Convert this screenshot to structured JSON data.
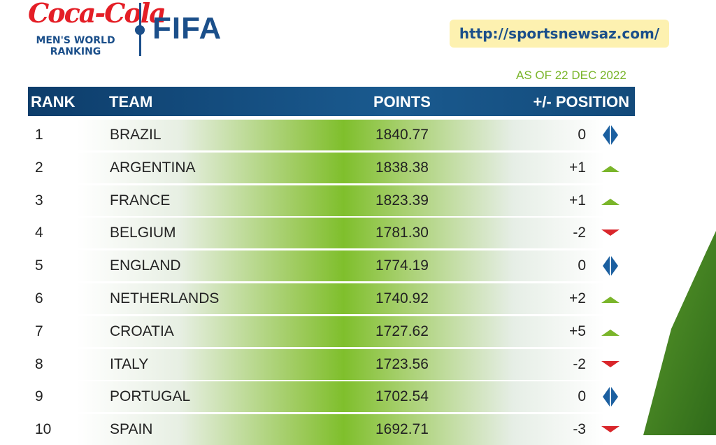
{
  "logo": {
    "sponsor": "Coca-Cola",
    "subtitle_line1": "MEN'S WORLD",
    "subtitle_line2": "RANKING",
    "org": "FIFA"
  },
  "url": "http://sportsnewsaz.com/",
  "as_of": "AS OF 22 DEC 2022",
  "columns": {
    "rank": "RANK",
    "team": "TEAM",
    "points": "POINTS",
    "change": "+/- POSITION"
  },
  "colors": {
    "header": "#0d3d6b",
    "up": "#7ab52a",
    "down": "#d9262b",
    "same": "#1b5fa0"
  },
  "rows": [
    {
      "rank": "1",
      "team": "BRAZIL",
      "points": "1840.77",
      "change": "0",
      "trend": "same"
    },
    {
      "rank": "2",
      "team": "ARGENTINA",
      "points": "1838.38",
      "change": "+1",
      "trend": "up"
    },
    {
      "rank": "3",
      "team": "FRANCE",
      "points": "1823.39",
      "change": "+1",
      "trend": "up"
    },
    {
      "rank": "4",
      "team": "BELGIUM",
      "points": "1781.30",
      "change": "-2",
      "trend": "down"
    },
    {
      "rank": "5",
      "team": "ENGLAND",
      "points": "1774.19",
      "change": "0",
      "trend": "same"
    },
    {
      "rank": "6",
      "team": "NETHERLANDS",
      "points": "1740.92",
      "change": "+2",
      "trend": "up"
    },
    {
      "rank": "7",
      "team": "CROATIA",
      "points": "1727.62",
      "change": "+5",
      "trend": "up"
    },
    {
      "rank": "8",
      "team": "ITALY",
      "points": "1723.56",
      "change": "-2",
      "trend": "down"
    },
    {
      "rank": "9",
      "team": "PORTUGAL",
      "points": "1702.54",
      "change": "0",
      "trend": "same"
    },
    {
      "rank": "10",
      "team": "SPAIN",
      "points": "1692.71",
      "change": "-3",
      "trend": "down"
    }
  ]
}
